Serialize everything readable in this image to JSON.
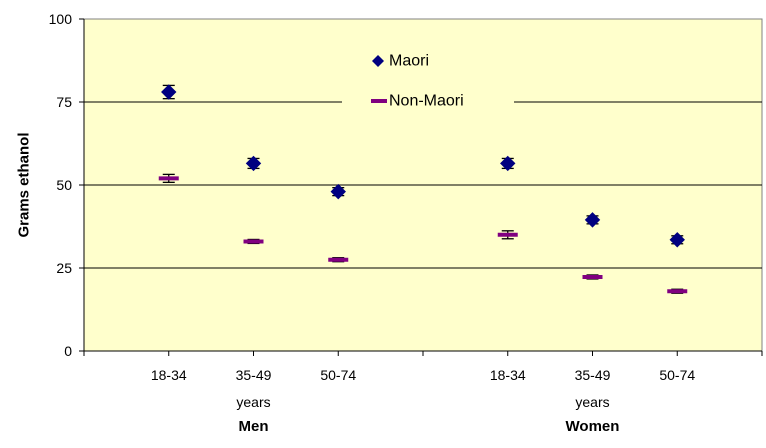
{
  "chart_data": {
    "type": "scatter",
    "ylabel": "Grams ethanol",
    "ylim": [
      0,
      100
    ],
    "yticks": [
      "0",
      "25",
      "50",
      "75",
      "100"
    ],
    "ytick_values": [
      0,
      25,
      50,
      75,
      100
    ],
    "gridlines": [
      25,
      50,
      75
    ],
    "categories": [
      "18-34",
      "35-49",
      "50-74",
      "18-34",
      "35-49",
      "50-74"
    ],
    "x_positions": [
      1,
      2,
      3,
      5,
      6,
      7
    ],
    "x_range": [
      0,
      8
    ],
    "sublabel": "years",
    "sublabel_positions": [
      2,
      6
    ],
    "groups": [
      {
        "label": "Men",
        "position": 2
      },
      {
        "label": "Women",
        "position": 6
      }
    ],
    "legend_position": "top-center",
    "plot_background": "#FFFFCC",
    "series": [
      {
        "name": "Maori",
        "marker": "diamond",
        "color": "#000080",
        "values": [
          78,
          56.5,
          48,
          56.5,
          39.5,
          33.5
        ],
        "err": [
          2,
          1.5,
          1.2,
          1.5,
          1.2,
          1.2
        ]
      },
      {
        "name": "Non-Maori",
        "marker": "dash",
        "color": "#800080",
        "values": [
          52,
          33,
          27.5,
          35,
          22.3,
          18
        ],
        "err": [
          1.2,
          0.6,
          0.6,
          1.2,
          0.6,
          0.6
        ]
      }
    ]
  }
}
